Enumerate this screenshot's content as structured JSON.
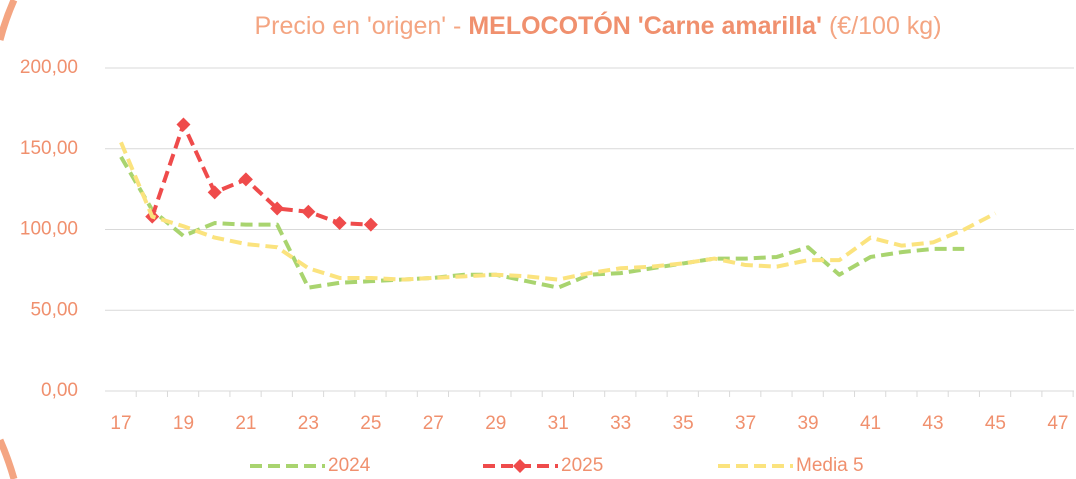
{
  "chart_data": {
    "type": "line",
    "title": [
      "Precio en 'origen' -",
      "MELOCOTÓN 'Carne amarilla'",
      "(€/100 kg)"
    ],
    "categories": [
      "17",
      null,
      "19",
      null,
      "21",
      null,
      "23",
      null,
      "25",
      null,
      "27",
      null,
      "29",
      null,
      "31",
      null,
      "33",
      null,
      "35",
      null,
      "37",
      null,
      "39",
      null,
      "41",
      null,
      "43",
      null,
      "45",
      null,
      "47"
    ],
    "series": [
      {
        "name": "2024",
        "color": "#a9d46f",
        "values": [
          145,
          112,
          96,
          104,
          103,
          103,
          64,
          67,
          68,
          69,
          70,
          72,
          72,
          68,
          64,
          72,
          73,
          76,
          79,
          82,
          82,
          83,
          89,
          72,
          83,
          86,
          88,
          88,
          null,
          null,
          null
        ]
      },
      {
        "name": "2025",
        "color": "#ef4b4b",
        "marker": "diamond",
        "values": [
          null,
          108,
          165,
          123,
          131,
          113,
          111,
          104,
          103,
          null,
          null,
          null,
          null,
          null,
          null,
          null,
          null,
          null,
          null,
          null,
          null,
          null,
          null,
          null,
          null,
          null,
          null,
          null,
          null,
          null,
          null
        ]
      },
      {
        "name": "Media 5",
        "color": "#fbe37e",
        "values": [
          154,
          108,
          102,
          95,
          91,
          89,
          76,
          70,
          70,
          69,
          70,
          71,
          72,
          71,
          69,
          73,
          76,
          77,
          79,
          82,
          78,
          77,
          81,
          81,
          95,
          90,
          92,
          100,
          110,
          null,
          null
        ]
      }
    ],
    "ylim": [
      0,
      200
    ],
    "yticks": [
      {
        "value": 0,
        "label": "0,00"
      },
      {
        "value": 50,
        "label": "50,00"
      },
      {
        "value": 100,
        "label": "100,00"
      },
      {
        "value": 150,
        "label": "150,00"
      },
      {
        "value": 200,
        "label": "200,00"
      }
    ],
    "grid": true,
    "legend": "bottom"
  }
}
